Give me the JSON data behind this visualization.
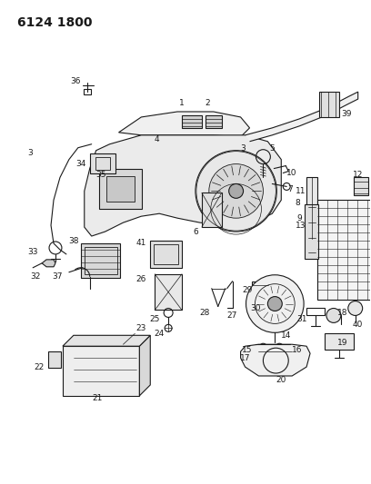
{
  "header": "6124 1800",
  "bg_color": "#ffffff",
  "line_color": "#1a1a1a",
  "fig_width": 4.08,
  "fig_height": 5.33,
  "dpi": 100,
  "label_fontsize": 6.5,
  "header_fontsize": 10
}
